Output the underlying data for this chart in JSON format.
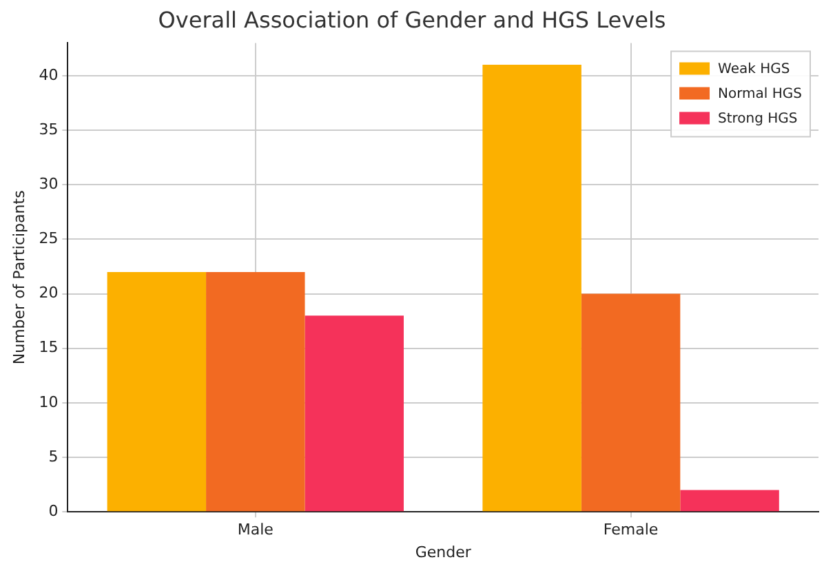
{
  "chart_data": {
    "type": "bar",
    "title": "Overall Association of Gender and HGS Levels",
    "xlabel": "Gender",
    "ylabel": "Number of Participants",
    "categories": [
      "Male",
      "Female"
    ],
    "series": [
      {
        "name": "Weak HGS",
        "color": "#fcb000",
        "values": [
          22,
          41
        ]
      },
      {
        "name": "Normal HGS",
        "color": "#f26a22",
        "values": [
          22,
          20
        ]
      },
      {
        "name": "Strong HGS",
        "color": "#f5325a",
        "values": [
          18,
          2
        ]
      }
    ],
    "ylim": [
      0,
      43
    ],
    "yticks": [
      0,
      5,
      10,
      15,
      20,
      25,
      30,
      35,
      40
    ],
    "grid": true,
    "legend": "top right"
  }
}
